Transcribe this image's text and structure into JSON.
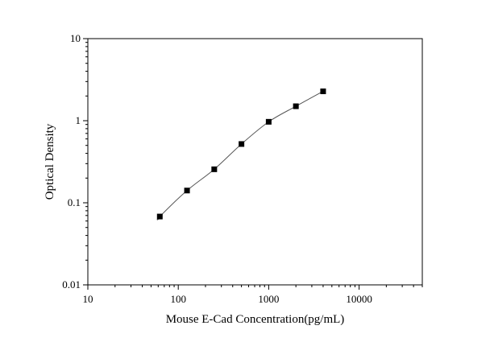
{
  "chart_data": {
    "type": "scatter",
    "title": "",
    "xlabel": "Mouse E-Cad Concentration(pg/mL)",
    "ylabel": "Optical Density",
    "xscale": "log",
    "yscale": "log",
    "xlim": [
      10,
      50000
    ],
    "ylim": [
      0.01,
      10
    ],
    "x_ticks": [
      10,
      100,
      1000,
      10000
    ],
    "x_tick_labels": [
      "10",
      "100",
      "1000",
      "10000"
    ],
    "y_ticks": [
      0.01,
      0.1,
      1,
      10
    ],
    "y_tick_labels": [
      "0.01",
      "0.1",
      "1",
      "10"
    ],
    "grid": false,
    "legend": "none",
    "series": [
      {
        "marker": "square",
        "color": "#000000",
        "points": [
          {
            "x": 62.5,
            "y": 0.068
          },
          {
            "x": 125,
            "y": 0.141
          },
          {
            "x": 250,
            "y": 0.256
          },
          {
            "x": 500,
            "y": 0.52
          },
          {
            "x": 1000,
            "y": 0.97
          },
          {
            "x": 2000,
            "y": 1.5
          },
          {
            "x": 4000,
            "y": 2.28
          }
        ]
      }
    ],
    "fit_curve": {
      "color": "#555555",
      "x_range": [
        60,
        4000
      ]
    }
  }
}
